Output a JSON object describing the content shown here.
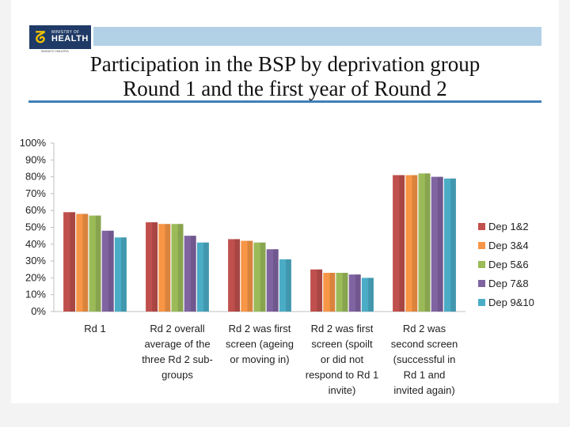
{
  "slide": {
    "title_line1": "Participation in the BSP by deprivation group",
    "title_line2": "Round 1 and the first year of Round 2",
    "logo": {
      "line1": "MINISTRY OF",
      "line2": "HEALTH",
      "line3": "MANATŪ HAUORA"
    }
  },
  "chart_data": {
    "type": "bar",
    "title": "",
    "xlabel": "",
    "ylabel": "",
    "ylim": [
      0,
      1
    ],
    "y_ticks": [
      "0%",
      "10%",
      "20%",
      "30%",
      "40%",
      "50%",
      "60%",
      "70%",
      "80%",
      "90%",
      "100%"
    ],
    "grid": false,
    "legend_position": "right",
    "categories": [
      [
        "Rd 1"
      ],
      [
        "Rd 2 overall",
        "average of the",
        "three Rd 2 sub-",
        "groups"
      ],
      [
        "Rd 2 was first",
        "screen (ageing",
        "or moving in)"
      ],
      [
        "Rd 2 was first",
        "screen (spoilt",
        "or did not",
        "respond to Rd 1",
        "invite)"
      ],
      [
        "Rd 2 was",
        "second screen",
        "(successful in",
        "Rd 1 and",
        "invited again)"
      ]
    ],
    "series": [
      {
        "name": "Dep 1&2",
        "color": "#c0504d",
        "values": [
          0.59,
          0.53,
          0.43,
          0.25,
          0.81
        ]
      },
      {
        "name": "Dep 3&4",
        "color": "#f79646",
        "values": [
          0.58,
          0.52,
          0.42,
          0.23,
          0.81
        ]
      },
      {
        "name": "Dep 5&6",
        "color": "#9bbb59",
        "values": [
          0.57,
          0.52,
          0.41,
          0.23,
          0.82
        ]
      },
      {
        "name": "Dep 7&8",
        "color": "#8064a2",
        "values": [
          0.48,
          0.45,
          0.37,
          0.22,
          0.8
        ]
      },
      {
        "name": "Dep 9&10",
        "color": "#4bacc6",
        "values": [
          0.44,
          0.41,
          0.31,
          0.2,
          0.79
        ]
      }
    ]
  }
}
